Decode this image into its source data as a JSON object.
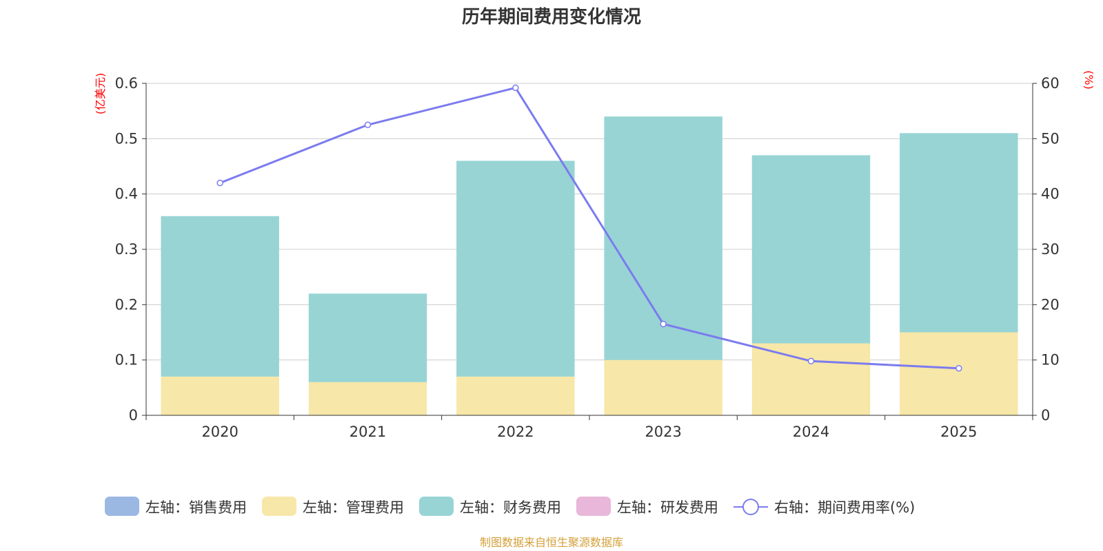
{
  "chart_data": {
    "type": "bar",
    "stacked": true,
    "title": "历年期间费用变化情况",
    "categories": [
      "2020",
      "2021",
      "2022",
      "2023",
      "2024",
      "2025"
    ],
    "left_axis": {
      "unit": "(亿美元)",
      "ylim": [
        0,
        0.6
      ],
      "ticks": [
        "0",
        "0.1",
        "0.2",
        "0.3",
        "0.4",
        "0.5",
        "0.6"
      ]
    },
    "right_axis": {
      "unit": "(%)",
      "ylim": [
        0,
        60
      ],
      "ticks": [
        "0",
        "10",
        "20",
        "30",
        "40",
        "50",
        "60"
      ]
    },
    "series": [
      {
        "name": "左轴：销售费用",
        "kind": "bar",
        "axis": "left",
        "color": "#9bb8e3",
        "values": [
          0,
          0,
          0,
          0,
          0,
          0
        ]
      },
      {
        "name": "左轴：管理费用",
        "kind": "bar",
        "axis": "left",
        "color": "#f7e7a8",
        "values": [
          0.07,
          0.06,
          0.07,
          0.1,
          0.13,
          0.15
        ]
      },
      {
        "name": "左轴：财务费用",
        "kind": "bar",
        "axis": "left",
        "color": "#98d4d4",
        "values": [
          0.29,
          0.16,
          0.39,
          0.44,
          0.34,
          0.36
        ]
      },
      {
        "name": "左轴：研发费用",
        "kind": "bar",
        "axis": "left",
        "color": "#e8b7d9",
        "values": [
          0,
          0,
          0,
          0,
          0,
          0
        ]
      },
      {
        "name": "右轴：期间费用率(%)",
        "kind": "line",
        "axis": "right",
        "color": "#7b7bef",
        "values": [
          42.0,
          52.5,
          59.2,
          16.5,
          9.8,
          8.5
        ]
      }
    ],
    "legend_position": "bottom",
    "grid": true
  },
  "colors": {
    "axis_unit": "#ff0000",
    "source": "#d4a03a",
    "grid": "#cccccc",
    "axis": "#333333"
  },
  "source_note": "制图数据来自恒生聚源数据库"
}
